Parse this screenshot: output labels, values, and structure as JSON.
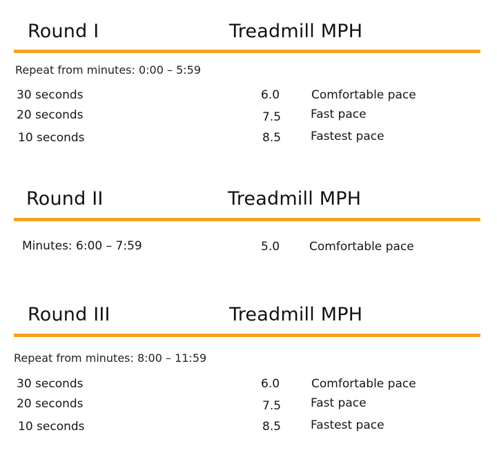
{
  "header_mph": "Treadmill MPH",
  "round1": {
    "title": "Round I",
    "note": "Repeat from minutes: 0:00 – 5:59",
    "rows": [
      {
        "interval": "30 seconds",
        "mph": "6.0",
        "pace": "Comfortable pace"
      },
      {
        "interval": "20 seconds",
        "mph": "7.5",
        "pace": "Fast pace"
      },
      {
        "interval": "10 seconds",
        "mph": "8.5",
        "pace": "Fastest pace"
      }
    ]
  },
  "round2": {
    "title": "Round II",
    "row": {
      "interval": "Minutes: 6:00 – 7:59",
      "mph": "5.0",
      "pace": "Comfortable pace"
    }
  },
  "round3": {
    "title": "Round III",
    "note": "Repeat from minutes: 8:00 – 11:59",
    "rows": [
      {
        "interval": "30 seconds",
        "mph": "6.0",
        "pace": "Comfortable pace"
      },
      {
        "interval": "20 seconds",
        "mph": "7.5",
        "pace": "Fast pace"
      },
      {
        "interval": "10 seconds",
        "mph": "8.5",
        "pace": "Fastest pace"
      }
    ]
  },
  "colors": {
    "accent_rule": "#f7a21b",
    "text": "#1a1a1a"
  }
}
